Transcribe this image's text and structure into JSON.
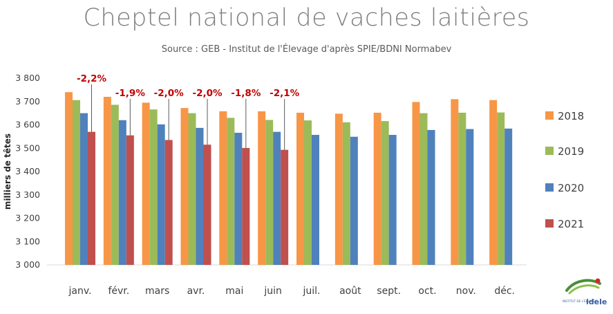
{
  "title": "Cheptel national de vaches laitières",
  "subtitle": "Source : GEB - Institut de l'Élevage d'après SPIE/BDNI Normabev",
  "chart_data": {
    "type": "bar",
    "ylabel": "milliers de têtes",
    "ylim": [
      3000,
      3800
    ],
    "yticks": [
      3000,
      3100,
      3200,
      3300,
      3400,
      3500,
      3600,
      3700,
      3800
    ],
    "ytick_labels": [
      "3 000",
      "3 100",
      "3 200",
      "3 300",
      "3 400",
      "3 500",
      "3 600",
      "3 700",
      "3 800"
    ],
    "categories": [
      "janv.",
      "févr.",
      "mars",
      "avr.",
      "mai",
      "juin",
      "juil.",
      "août",
      "sept.",
      "oct.",
      "nov.",
      "déc."
    ],
    "grid": false,
    "legend_position": "right",
    "series": [
      {
        "name": "2018",
        "color": "#f79646",
        "values": [
          3740,
          3720,
          3695,
          3672,
          3658,
          3658,
          3652,
          3648,
          3652,
          3698,
          3710,
          3706
        ]
      },
      {
        "name": "2019",
        "color": "#9bbb59",
        "values": [
          3706,
          3686,
          3666,
          3650,
          3630,
          3621,
          3619,
          3611,
          3616,
          3650,
          3652,
          3653
        ]
      },
      {
        "name": "2020",
        "color": "#4f81bd",
        "values": [
          3650,
          3620,
          3602,
          3587,
          3566,
          3570,
          3557,
          3549,
          3557,
          3578,
          3582,
          3584
        ]
      },
      {
        "name": "2021",
        "color": "#c0504d",
        "values": [
          3570,
          3555,
          3535,
          3515,
          3501,
          3493,
          null,
          null,
          null,
          null,
          null,
          null
        ]
      }
    ],
    "annotations": [
      {
        "category": "janv.",
        "text": "-2,2%"
      },
      {
        "category": "févr.",
        "text": "-1,9%"
      },
      {
        "category": "mars",
        "text": "-2,0%"
      },
      {
        "category": "avr.",
        "text": "-2,0%"
      },
      {
        "category": "mai",
        "text": "-1,8%"
      },
      {
        "category": "juin",
        "text": "-2,1%"
      }
    ],
    "annotation_color": "#c00000"
  },
  "logo": {
    "text_top": "INSTITUT DE L'ÉLEVAGE",
    "text_brand": "idele"
  }
}
